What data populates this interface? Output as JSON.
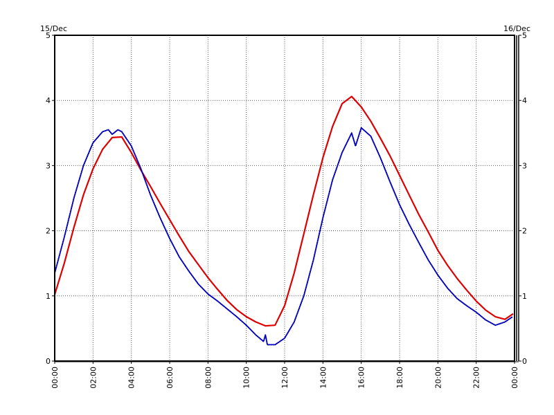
{
  "chart_data": {
    "type": "line",
    "title": "",
    "xlabel": "",
    "ylabel": "",
    "date_start_label": "15/Dec",
    "date_end_label": "16/Dec",
    "x_ticks": [
      "00:00",
      "02:00",
      "04:00",
      "06:00",
      "08:00",
      "10:00",
      "12:00",
      "14:00",
      "16:00",
      "18:00",
      "20:00",
      "22:00",
      "00:00"
    ],
    "x_tick_hours": [
      0,
      2,
      4,
      6,
      8,
      10,
      12,
      14,
      16,
      18,
      20,
      22,
      24
    ],
    "xlim_hours": [
      0,
      24
    ],
    "y_ticks": [
      "0",
      "1",
      "2",
      "3",
      "4",
      "5"
    ],
    "y_tick_values": [
      0,
      1,
      2,
      3,
      4,
      5
    ],
    "ylim": [
      0,
      5
    ],
    "grid": true,
    "legend": "none",
    "series": [
      {
        "color": "#dd0000",
        "style": "solid",
        "points": [
          [
            0,
            1.02
          ],
          [
            0.5,
            1.5
          ],
          [
            1,
            2.05
          ],
          [
            1.5,
            2.55
          ],
          [
            2,
            2.95
          ],
          [
            2.5,
            3.25
          ],
          [
            3,
            3.43
          ],
          [
            3.5,
            3.44
          ],
          [
            4,
            3.2
          ],
          [
            4.5,
            2.93
          ],
          [
            5,
            2.68
          ],
          [
            5.5,
            2.42
          ],
          [
            6,
            2.17
          ],
          [
            6.5,
            1.92
          ],
          [
            7,
            1.68
          ],
          [
            7.5,
            1.48
          ],
          [
            8,
            1.28
          ],
          [
            8.5,
            1.1
          ],
          [
            9,
            0.93
          ],
          [
            9.5,
            0.79
          ],
          [
            10,
            0.68
          ],
          [
            10.5,
            0.6
          ],
          [
            11,
            0.54
          ],
          [
            11.5,
            0.55
          ],
          [
            12,
            0.85
          ],
          [
            12.5,
            1.35
          ],
          [
            13,
            1.95
          ],
          [
            13.5,
            2.55
          ],
          [
            14,
            3.12
          ],
          [
            14.5,
            3.6
          ],
          [
            15,
            3.95
          ],
          [
            15.5,
            4.06
          ],
          [
            16,
            3.9
          ],
          [
            16.5,
            3.68
          ],
          [
            17,
            3.42
          ],
          [
            17.5,
            3.15
          ],
          [
            18,
            2.85
          ],
          [
            18.5,
            2.55
          ],
          [
            19,
            2.25
          ],
          [
            19.5,
            1.98
          ],
          [
            20,
            1.7
          ],
          [
            20.5,
            1.47
          ],
          [
            21,
            1.27
          ],
          [
            21.5,
            1.09
          ],
          [
            22,
            0.92
          ],
          [
            22.5,
            0.78
          ],
          [
            23,
            0.68
          ],
          [
            23.5,
            0.64
          ],
          [
            23.9,
            0.72
          ]
        ]
      },
      {
        "color": "#0000bb",
        "style": "dotted",
        "points": [
          [
            0,
            1.35
          ],
          [
            0.5,
            1.9
          ],
          [
            1,
            2.5
          ],
          [
            1.5,
            3.0
          ],
          [
            2,
            3.35
          ],
          [
            2.5,
            3.52
          ],
          [
            2.8,
            3.55
          ],
          [
            3,
            3.48
          ],
          [
            3.3,
            3.55
          ],
          [
            3.5,
            3.52
          ],
          [
            4,
            3.3
          ],
          [
            4.5,
            2.95
          ],
          [
            5,
            2.55
          ],
          [
            5.5,
            2.2
          ],
          [
            6,
            1.88
          ],
          [
            6.5,
            1.6
          ],
          [
            7,
            1.38
          ],
          [
            7.5,
            1.18
          ],
          [
            8,
            1.03
          ],
          [
            8.5,
            0.92
          ],
          [
            9,
            0.8
          ],
          [
            9.5,
            0.68
          ],
          [
            10,
            0.55
          ],
          [
            10.5,
            0.4
          ],
          [
            10.9,
            0.3
          ],
          [
            11,
            0.4
          ],
          [
            11.1,
            0.25
          ],
          [
            11.5,
            0.25
          ],
          [
            12,
            0.35
          ],
          [
            12.5,
            0.6
          ],
          [
            13,
            1.0
          ],
          [
            13.5,
            1.55
          ],
          [
            14,
            2.2
          ],
          [
            14.5,
            2.78
          ],
          [
            15,
            3.2
          ],
          [
            15.5,
            3.5
          ],
          [
            15.7,
            3.3
          ],
          [
            16,
            3.58
          ],
          [
            16.5,
            3.45
          ],
          [
            17,
            3.12
          ],
          [
            17.5,
            2.75
          ],
          [
            18,
            2.4
          ],
          [
            18.5,
            2.1
          ],
          [
            19,
            1.82
          ],
          [
            19.5,
            1.55
          ],
          [
            20,
            1.32
          ],
          [
            20.5,
            1.12
          ],
          [
            21,
            0.96
          ],
          [
            21.5,
            0.85
          ],
          [
            22,
            0.75
          ],
          [
            22.5,
            0.63
          ],
          [
            23,
            0.55
          ],
          [
            23.5,
            0.6
          ],
          [
            23.9,
            0.68
          ]
        ]
      }
    ]
  }
}
